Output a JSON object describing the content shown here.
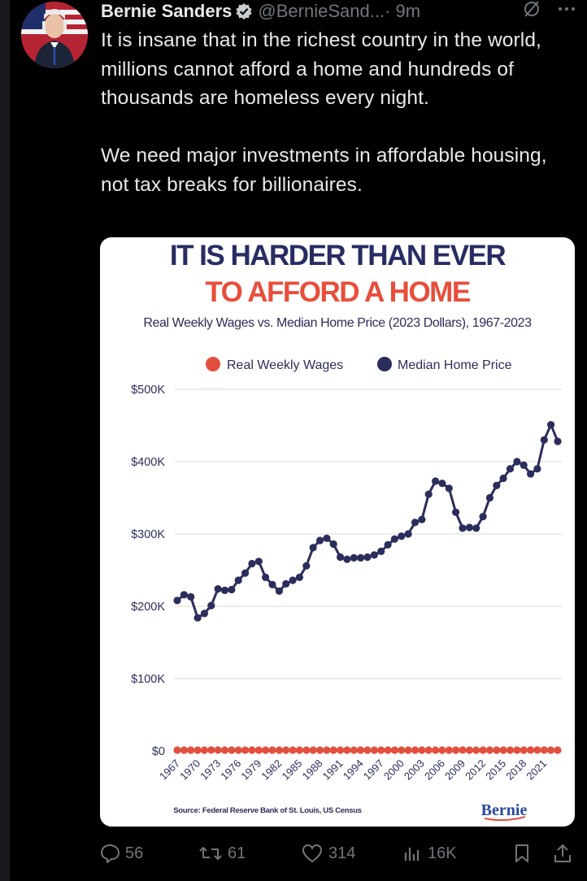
{
  "tweet": {
    "author_name": "Bernie Sanders",
    "handle": "@BernieSand...",
    "time": "· 9m",
    "text": "It is insane that in the richest country in the world, millions cannot afford a home and hundreds of thousands are homeless every night.\n\nWe need major investments in affordable housing, not tax breaks for billionaires."
  },
  "card": {
    "headline_1": "IT IS HARDER THAN EVER",
    "headline_2": "TO AFFORD A HOME",
    "source": "Source: Federal Reserve Bank of St. Louis, US Census",
    "logo": "Bernie"
  },
  "actions": {
    "replies": "56",
    "reposts": "61",
    "likes": "314",
    "views": "16K"
  },
  "colors": {
    "navy": "#2b2d5c",
    "red": "#e34f3f",
    "headline_navy": "#272c63",
    "headline_red": "#e84e3b",
    "logo_blue": "#2a4aa0"
  },
  "chart_data": {
    "type": "line",
    "title": "Real Weekly Wages vs. Median Home Price (2023 Dollars), 1967-2023",
    "y_tick_labels": [
      "$0",
      "$100K",
      "$200K",
      "$300K",
      "$400K",
      "$500K"
    ],
    "ylim": [
      0,
      500000
    ],
    "x_tick_labels": [
      "1967",
      "1970",
      "1973",
      "1976",
      "1979",
      "1982",
      "1985",
      "1988",
      "1991",
      "1994",
      "1997",
      "2000",
      "2003",
      "2006",
      "2009",
      "2012",
      "2015",
      "2018",
      "2021"
    ],
    "legend": "top",
    "grid": true,
    "x": [
      1967,
      1968,
      1969,
      1970,
      1971,
      1972,
      1973,
      1974,
      1975,
      1976,
      1977,
      1978,
      1979,
      1980,
      1981,
      1982,
      1983,
      1984,
      1985,
      1986,
      1987,
      1988,
      1989,
      1990,
      1991,
      1992,
      1993,
      1994,
      1995,
      1996,
      1997,
      1998,
      1999,
      2000,
      2001,
      2002,
      2003,
      2004,
      2005,
      2006,
      2007,
      2008,
      2009,
      2010,
      2011,
      2012,
      2013,
      2014,
      2015,
      2016,
      2017,
      2018,
      2019,
      2020,
      2021,
      2022,
      2023
    ],
    "series": [
      {
        "name": "Real Weekly Wages",
        "color": "#e34f3f",
        "values": [
          1100,
          1120,
          1140,
          1140,
          1150,
          1180,
          1180,
          1150,
          1120,
          1140,
          1150,
          1160,
          1140,
          1100,
          1090,
          1090,
          1100,
          1100,
          1110,
          1130,
          1130,
          1130,
          1120,
          1100,
          1090,
          1090,
          1090,
          1090,
          1090,
          1090,
          1100,
          1120,
          1140,
          1150,
          1160,
          1160,
          1160,
          1160,
          1150,
          1150,
          1150,
          1140,
          1180,
          1170,
          1140,
          1140,
          1140,
          1140,
          1160,
          1170,
          1170,
          1170,
          1190,
          1260,
          1220,
          1170,
          1170
        ]
      },
      {
        "name": "Median Home Price",
        "color": "#2b2d5c",
        "values": [
          208000,
          216000,
          213000,
          184000,
          190000,
          201000,
          224000,
          222000,
          223000,
          236000,
          246000,
          259000,
          262000,
          240000,
          230000,
          221000,
          231000,
          236000,
          240000,
          256000,
          281000,
          291000,
          294000,
          286000,
          268000,
          265000,
          267000,
          267000,
          268000,
          271000,
          276000,
          285000,
          293000,
          297000,
          300000,
          316000,
          320000,
          355000,
          373000,
          370000,
          363000,
          330000,
          308000,
          309000,
          308000,
          324000,
          350000,
          367000,
          377000,
          390000,
          400000,
          395000,
          383000,
          390000,
          430000,
          451000,
          428000
        ]
      }
    ]
  }
}
